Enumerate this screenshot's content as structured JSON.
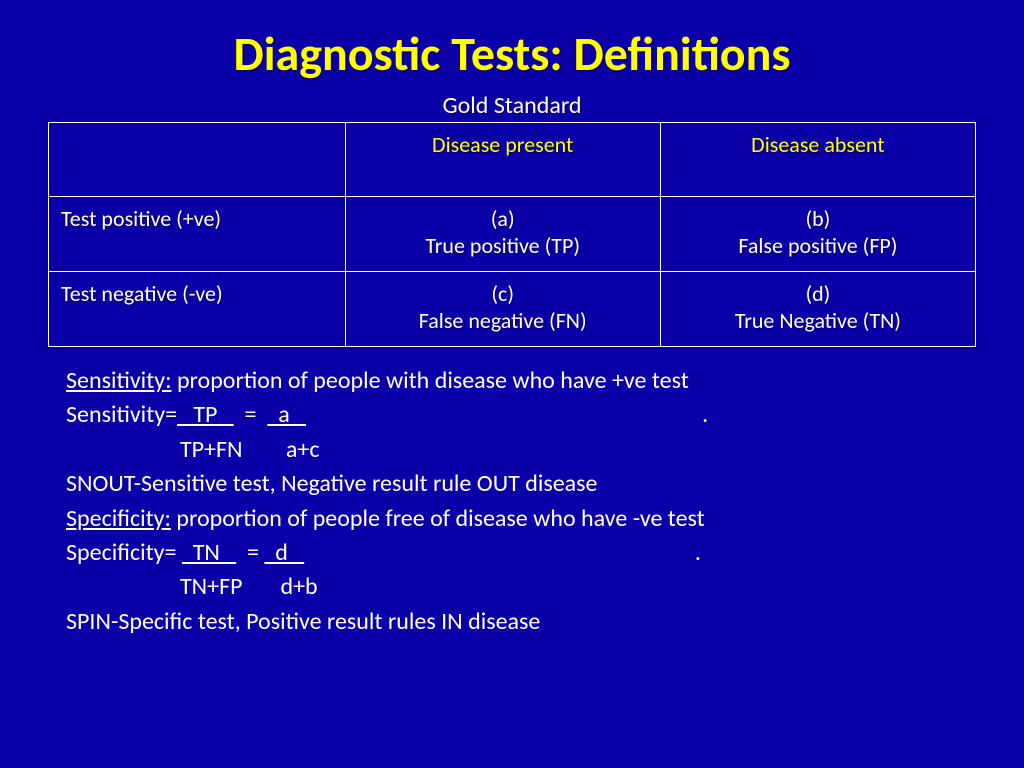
{
  "colors": {
    "background": "#0b00a8",
    "title": "#ffff00",
    "header_text": "#ffff00",
    "body_text": "#ffffff",
    "border": "#ffffff"
  },
  "fonts": {
    "family": "Calibri",
    "title_size_pt": 40,
    "table_size_pt": 18,
    "body_size_pt": 18
  },
  "title": "Diagnostic Tests: Definitions",
  "table": {
    "caption": "Gold Standard",
    "columns": [
      "",
      "Disease present",
      "Disease absent"
    ],
    "rows": [
      {
        "header": "Test positive (+ve)",
        "cells": [
          {
            "code": "(a)",
            "label": "True positive (TP)"
          },
          {
            "code": "(b)",
            "label": "False positive (FP)"
          }
        ]
      },
      {
        "header": "Test negative (-ve)",
        "cells": [
          {
            "code": "(c)",
            "label": "False negative (FN)"
          },
          {
            "code": "(d)",
            "label": "True Negative (TN)"
          }
        ]
      }
    ]
  },
  "definitions": {
    "sensitivity": {
      "term": "Sensitivity:",
      "desc": " proportion of people with disease who have +ve test",
      "formula_lhs": "Sensitivity=",
      "num1": "   TP   ",
      "eq": "  =  ",
      "num2": "  a   ",
      "tail": "                                                                         .",
      "den_line": "                     TP+FN        a+c",
      "mnemonic": "SNOUT-Sensitive test, Negative result rule OUT disease"
    },
    "specificity": {
      "term": "Specificity:",
      "desc": " proportion of people free of disease who have -ve test",
      "formula_lhs": "Specificity= ",
      "num1": "  TN   ",
      "eq": "  = ",
      "num2": "  d   ",
      "tail": "                                                                        .",
      "den_line": "                     TN+FP       d+b",
      "mnemonic": "SPIN-Specific test, Positive result rules IN disease"
    }
  }
}
